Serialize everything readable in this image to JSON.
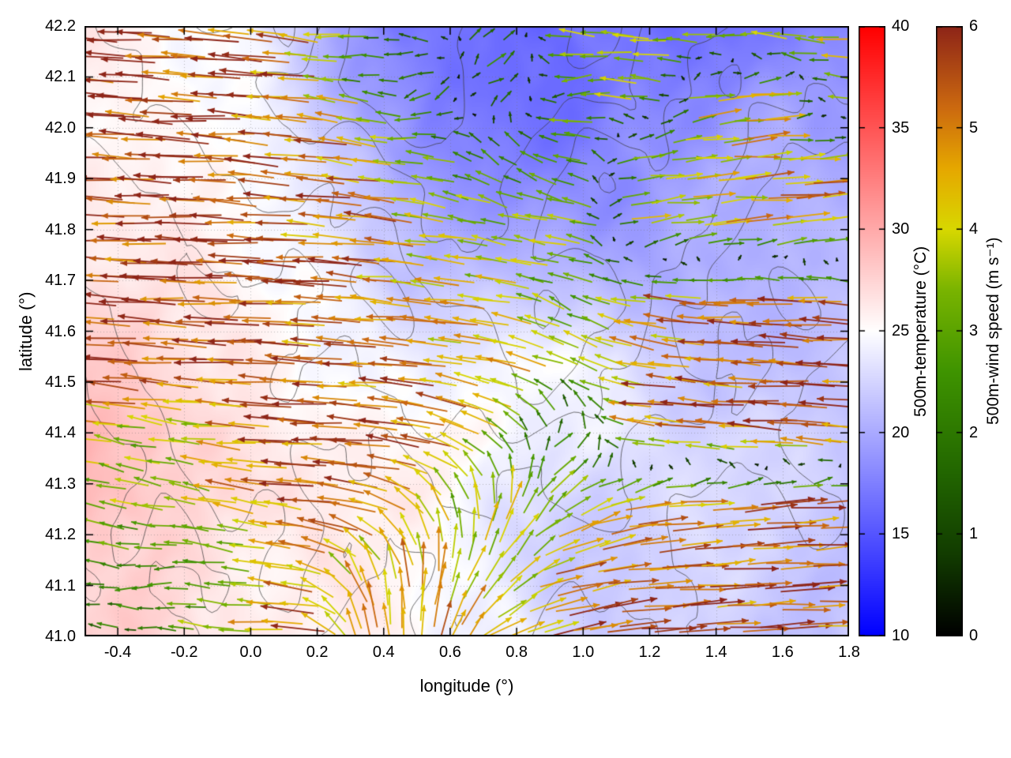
{
  "chart_data": {
    "type": "heatmap",
    "subtype": "temperature field with terrain contours and wind-vector overlay",
    "title": "",
    "xlabel": "longitude (°)",
    "ylabel": "latitude (°)",
    "xlim": [
      -0.5,
      1.8
    ],
    "ylim": [
      41.0,
      42.2
    ],
    "xticks": [
      -0.4,
      -0.2,
      0.0,
      0.2,
      0.4,
      0.6,
      0.8,
      1.0,
      1.2,
      1.4,
      1.6,
      1.8
    ],
    "xtick_labels": [
      "-0.4",
      "-0.2",
      "0.0",
      "0.2",
      "0.4",
      "0.6",
      "0.8",
      "1.0",
      "1.2",
      "1.4",
      "1.6",
      "1.8"
    ],
    "yticks": [
      41.0,
      41.1,
      41.2,
      41.3,
      41.4,
      41.5,
      41.6,
      41.7,
      41.8,
      41.9,
      42.0,
      42.1,
      42.2
    ],
    "ytick_labels": [
      "41.0",
      "41.1",
      "41.2",
      "41.3",
      "41.4",
      "41.5",
      "41.6",
      "41.7",
      "41.8",
      "41.9",
      "42.0",
      "42.1",
      "42.2"
    ],
    "grid": "dotted",
    "temperature_field": {
      "label": "500m-temperature (°C)",
      "range": [
        10,
        40
      ],
      "ticks": [
        10,
        15,
        20,
        25,
        30,
        35,
        40
      ],
      "tick_labels": [
        "10",
        "15",
        "20",
        "25",
        "30",
        "35",
        "40"
      ],
      "colormap": [
        [
          10,
          "#0000ff"
        ],
        [
          25,
          "#ffffff"
        ],
        [
          40,
          "#ff0000"
        ]
      ],
      "grid_lon": [
        -0.5,
        -0.29,
        -0.08,
        0.13,
        0.34,
        0.55,
        0.76,
        0.96,
        1.17,
        1.38,
        1.59,
        1.8
      ],
      "grid_lat": [
        42.2,
        42.07,
        41.93,
        41.8,
        41.67,
        41.53,
        41.4,
        41.27,
        41.13,
        41.0
      ],
      "values_c": [
        [
          26.0,
          25.5,
          24.0,
          22.0,
          18.5,
          17.0,
          16.0,
          15.5,
          16.5,
          17.0,
          17.5,
          17.0
        ],
        [
          26.0,
          25.8,
          24.5,
          22.5,
          19.5,
          17.5,
          16.5,
          16.0,
          17.5,
          18.5,
          19.0,
          18.5
        ],
        [
          26.5,
          26.0,
          25.0,
          23.5,
          21.0,
          18.5,
          17.5,
          17.5,
          18.5,
          19.5,
          20.0,
          19.5
        ],
        [
          27.0,
          26.5,
          25.5,
          24.0,
          22.5,
          21.0,
          19.5,
          19.0,
          19.5,
          20.5,
          21.0,
          20.5
        ],
        [
          27.0,
          26.8,
          26.0,
          25.0,
          23.5,
          22.5,
          22.0,
          21.0,
          20.5,
          21.0,
          21.5,
          21.0
        ],
        [
          27.5,
          27.0,
          26.5,
          25.5,
          24.5,
          23.5,
          24.5,
          25.0,
          22.5,
          21.5,
          21.5,
          21.5
        ],
        [
          28.5,
          28.0,
          27.0,
          26.0,
          25.5,
          24.5,
          25.0,
          24.5,
          23.0,
          22.0,
          22.0,
          22.0
        ],
        [
          28.5,
          28.2,
          27.5,
          26.5,
          25.5,
          25.0,
          24.0,
          23.0,
          22.5,
          22.0,
          22.0,
          22.0
        ],
        [
          27.5,
          27.8,
          27.0,
          26.0,
          25.5,
          25.0,
          24.0,
          22.5,
          22.0,
          21.8,
          22.0,
          22.0
        ],
        [
          27.5,
          27.5,
          26.8,
          26.0,
          25.5,
          25.0,
          24.5,
          22.5,
          22.0,
          22.0,
          22.0,
          22.0
        ]
      ]
    },
    "wind_field": {
      "label": "500m-wind speed (m s⁻¹)",
      "range": [
        0,
        6
      ],
      "ticks": [
        0,
        1,
        2,
        3,
        4,
        5,
        6
      ],
      "tick_labels": [
        "0",
        "1",
        "2",
        "3",
        "4",
        "5",
        "6"
      ],
      "colormap": [
        [
          0,
          "#000000"
        ],
        [
          0.8,
          "#123c00"
        ],
        [
          1.6,
          "#226600"
        ],
        [
          2.6,
          "#3f9400"
        ],
        [
          3.4,
          "#79b400"
        ],
        [
          4.0,
          "#d8d800"
        ],
        [
          4.6,
          "#e6a800"
        ],
        [
          5.2,
          "#cc6a10"
        ],
        [
          6,
          "#8e2518"
        ]
      ],
      "grid_lon": [
        -0.5,
        -0.29,
        -0.08,
        0.13,
        0.34,
        0.55,
        0.76,
        0.96,
        1.17,
        1.38,
        1.59,
        1.8
      ],
      "grid_lat": [
        42.2,
        42.07,
        41.93,
        41.8,
        41.67,
        41.53,
        41.4,
        41.27,
        41.13,
        41.0
      ],
      "uv_ms": [
        [
          [
            -5.8,
            0.4
          ],
          [
            -5.8,
            0.3
          ],
          [
            -5.5,
            0.5
          ],
          [
            -4.5,
            0.8
          ],
          [
            -1.8,
            -0.9
          ],
          [
            -1.4,
            1.1
          ],
          [
            2.2,
            1.0
          ],
          [
            -3.2,
            0.6
          ],
          [
            -4.0,
            0.3
          ],
          [
            -4.4,
            -0.3
          ],
          [
            -4.8,
            0.4
          ],
          [
            -5.0,
            0.3
          ]
        ],
        [
          [
            -5.8,
            0.3
          ],
          [
            -5.7,
            0.4
          ],
          [
            -5.6,
            0.3
          ],
          [
            -5.1,
            0.5
          ],
          [
            -2.4,
            0.9
          ],
          [
            -1.6,
            -1.3
          ],
          [
            1.8,
            1.2
          ],
          [
            -2.6,
            -0.6
          ],
          [
            -3.6,
            0.5
          ],
          [
            3.8,
            0.6
          ],
          [
            4.2,
            0.3
          ],
          [
            -4.6,
            0.4
          ]
        ],
        [
          [
            -5.9,
            0.2
          ],
          [
            -5.8,
            0.3
          ],
          [
            -5.7,
            0.4
          ],
          [
            -5.3,
            0.5
          ],
          [
            -4.6,
            0.7
          ],
          [
            -3.0,
            0.6
          ],
          [
            -2.0,
            1.4
          ],
          [
            -3.4,
            1.0
          ],
          [
            3.7,
            0.4
          ],
          [
            4.1,
            0.4
          ],
          [
            4.4,
            0.3
          ],
          [
            4.6,
            0.3
          ]
        ],
        [
          [
            -5.8,
            0.3
          ],
          [
            -5.8,
            0.2
          ],
          [
            -5.7,
            0.3
          ],
          [
            -5.4,
            0.4
          ],
          [
            -4.9,
            0.5
          ],
          [
            -4.1,
            0.6
          ],
          [
            -3.6,
            0.8
          ],
          [
            -3.8,
            0.6
          ],
          [
            3.5,
            0.5
          ],
          [
            4.0,
            0.4
          ],
          [
            4.3,
            0.3
          ],
          [
            4.5,
            0.4
          ]
        ],
        [
          [
            -5.8,
            0.2
          ],
          [
            -5.7,
            0.3
          ],
          [
            -5.6,
            0.2
          ],
          [
            -5.5,
            0.3
          ],
          [
            -5.1,
            0.4
          ],
          [
            -4.3,
            0.5
          ],
          [
            -3.8,
            0.7
          ],
          [
            -2.2,
            1.3
          ],
          [
            -4.4,
            0.5
          ],
          [
            -5.1,
            0.3
          ],
          [
            -5.3,
            0.2
          ],
          [
            -5.4,
            0.3
          ]
        ],
        [
          [
            -5.6,
            0.3
          ],
          [
            -5.5,
            0.4
          ],
          [
            -5.6,
            0.3
          ],
          [
            -5.5,
            0.3
          ],
          [
            -5.4,
            0.3
          ],
          [
            -4.7,
            0.6
          ],
          [
            -4.0,
            0.9
          ],
          [
            -3.1,
            1.5
          ],
          [
            -4.9,
            0.8
          ],
          [
            -5.4,
            0.4
          ],
          [
            -5.5,
            0.3
          ],
          [
            -5.6,
            0.2
          ]
        ],
        [
          [
            -3.6,
            0.6
          ],
          [
            -3.3,
            0.6
          ],
          [
            -4.6,
            0.4
          ],
          [
            -5.4,
            0.3
          ],
          [
            -5.5,
            0.4
          ],
          [
            -5.0,
            1.2
          ],
          [
            -2.4,
            2.2
          ],
          [
            2.0,
            1.8
          ],
          [
            -5.0,
            0.6
          ],
          [
            -5.4,
            0.4
          ],
          [
            -5.5,
            0.3
          ],
          [
            -5.5,
            0.3
          ]
        ],
        [
          [
            -3.0,
            0.8
          ],
          [
            -3.2,
            0.6
          ],
          [
            -3.9,
            0.8
          ],
          [
            -5.2,
            0.6
          ],
          [
            -5.3,
            0.9
          ],
          [
            -2.0,
            3.4
          ],
          [
            1.0,
            3.9
          ],
          [
            3.0,
            2.1
          ],
          [
            4.9,
            0.9
          ],
          [
            5.2,
            0.5
          ],
          [
            5.4,
            0.4
          ],
          [
            5.5,
            0.3
          ]
        ],
        [
          [
            -2.0,
            0.6
          ],
          [
            -2.4,
            -0.5
          ],
          [
            -3.1,
            0.4
          ],
          [
            -4.8,
            0.6
          ],
          [
            -1.6,
            4.4
          ],
          [
            0.6,
            4.9
          ],
          [
            2.1,
            3.0
          ],
          [
            4.4,
            1.5
          ],
          [
            5.1,
            0.7
          ],
          [
            5.4,
            0.4
          ],
          [
            5.5,
            0.3
          ],
          [
            5.5,
            0.3
          ]
        ],
        [
          [
            -1.3,
            0.3
          ],
          [
            -2.2,
            0.3
          ],
          [
            -4.0,
            0.4
          ],
          [
            -5.1,
            0.4
          ],
          [
            -1.0,
            4.9
          ],
          [
            0.6,
            5.1
          ],
          [
            3.4,
            2.0
          ],
          [
            5.0,
            1.0
          ],
          [
            5.3,
            0.5
          ],
          [
            5.5,
            0.3
          ],
          [
            5.5,
            0.3
          ],
          [
            5.6,
            0.2
          ]
        ]
      ]
    },
    "contours": {
      "color": "#3a3a3a",
      "levels": [
        0.8,
        1.4,
        2.0,
        2.6,
        3.2,
        3.8
      ],
      "terrain_grid": [
        [
          2.5,
          2.8,
          3.0,
          3.2,
          2.8,
          3.5,
          4.0,
          4.2,
          3.8,
          3.5,
          3.9,
          3.4,
          3.0,
          2.6,
          2.2,
          2.0
        ],
        [
          2.2,
          2.6,
          3.1,
          2.9,
          3.3,
          3.8,
          4.3,
          4.0,
          3.6,
          3.8,
          3.3,
          2.9,
          2.6,
          2.3,
          2.0,
          1.8
        ],
        [
          2.0,
          2.4,
          2.7,
          3.0,
          2.8,
          3.2,
          3.6,
          3.9,
          3.4,
          3.0,
          2.8,
          2.5,
          2.2,
          2.0,
          1.7,
          1.5
        ],
        [
          1.8,
          2.1,
          2.5,
          2.3,
          2.6,
          2.9,
          3.1,
          3.3,
          3.0,
          2.7,
          2.4,
          2.1,
          1.9,
          1.6,
          1.4,
          1.3
        ],
        [
          1.5,
          1.8,
          2.2,
          2.0,
          2.3,
          2.5,
          2.8,
          3.0,
          3.2,
          2.9,
          2.5,
          2.2,
          1.8,
          1.5,
          1.3,
          1.1
        ],
        [
          1.2,
          1.5,
          1.9,
          2.1,
          1.8,
          2.2,
          2.4,
          2.7,
          3.0,
          3.1,
          2.6,
          2.1,
          1.7,
          1.4,
          1.1,
          1.0
        ],
        [
          1.0,
          1.3,
          1.6,
          1.8,
          2.0,
          1.7,
          2.1,
          2.4,
          2.6,
          2.8,
          2.3,
          1.9,
          1.5,
          1.2,
          1.0,
          0.9
        ],
        [
          0.8,
          1.1,
          1.4,
          1.7,
          1.9,
          1.5,
          1.8,
          2.2,
          2.0,
          2.3,
          2.0,
          1.6,
          1.3,
          1.0,
          0.8,
          0.8
        ],
        [
          0.7,
          0.9,
          1.2,
          1.5,
          1.8,
          1.3,
          1.1,
          1.6,
          1.8,
          1.5,
          1.6,
          1.3,
          1.0,
          0.9,
          0.7,
          0.6
        ],
        [
          0.6,
          0.8,
          1.0,
          1.3,
          1.6,
          1.1,
          0.8,
          1.2,
          1.5,
          1.2,
          1.3,
          1.0,
          0.8,
          0.7,
          0.6,
          0.5
        ],
        [
          0.5,
          0.7,
          0.9,
          1.1,
          1.3,
          0.9,
          0.6,
          0.9,
          1.1,
          0.9,
          1.0,
          0.8,
          0.6,
          0.5,
          0.5,
          0.4
        ],
        [
          0.4,
          0.6,
          0.8,
          0.9,
          1.0,
          0.7,
          0.5,
          0.7,
          0.8,
          0.7,
          0.8,
          0.6,
          0.5,
          0.4,
          0.4,
          0.3
        ]
      ]
    }
  }
}
